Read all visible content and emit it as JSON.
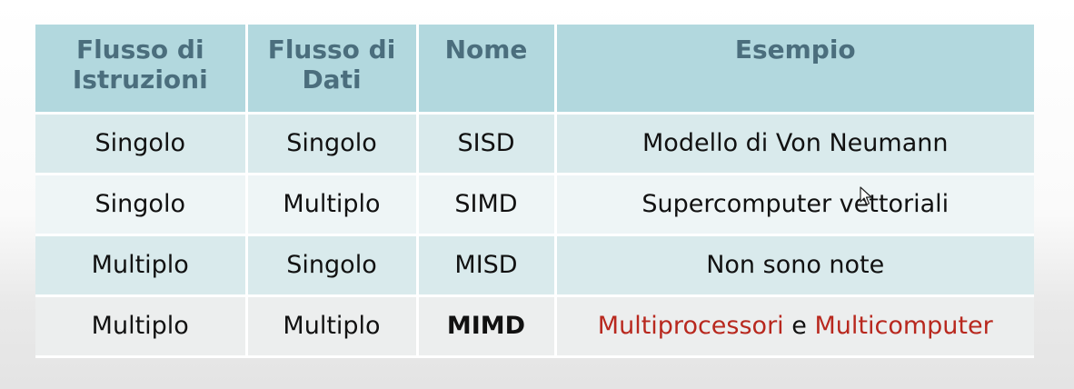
{
  "table": {
    "headers": [
      {
        "line1": "Flusso di",
        "line2": "Istruzioni"
      },
      {
        "line1": "Flusso di",
        "line2": "Dati"
      },
      {
        "line1": "Nome",
        "line2": ""
      },
      {
        "line1": "Esempio",
        "line2": ""
      }
    ],
    "rows": [
      {
        "istruzioni": "Singolo",
        "dati": "Singolo",
        "nome": "SISD",
        "esempio": "Modello di Von Neumann"
      },
      {
        "istruzioni": "Singolo",
        "dati": "Multiplo",
        "nome": "SIMD",
        "esempio": "Supercomputer vettoriali"
      },
      {
        "istruzioni": "Multiplo",
        "dati": "Singolo",
        "nome": "MISD",
        "esempio": "Non sono note"
      },
      {
        "istruzioni": "Multiplo",
        "dati": "Multiplo",
        "nome": "MIMD",
        "esempio_part1": "Multiprocessori",
        "esempio_join": "e",
        "esempio_part2": "Multicomputer"
      }
    ]
  },
  "colors": {
    "header_bg": "#b2d8de",
    "header_text": "#4b6e7d",
    "highlight_text": "#b8281e"
  },
  "icons": {
    "cursor": "mouse-pointer-icon"
  }
}
